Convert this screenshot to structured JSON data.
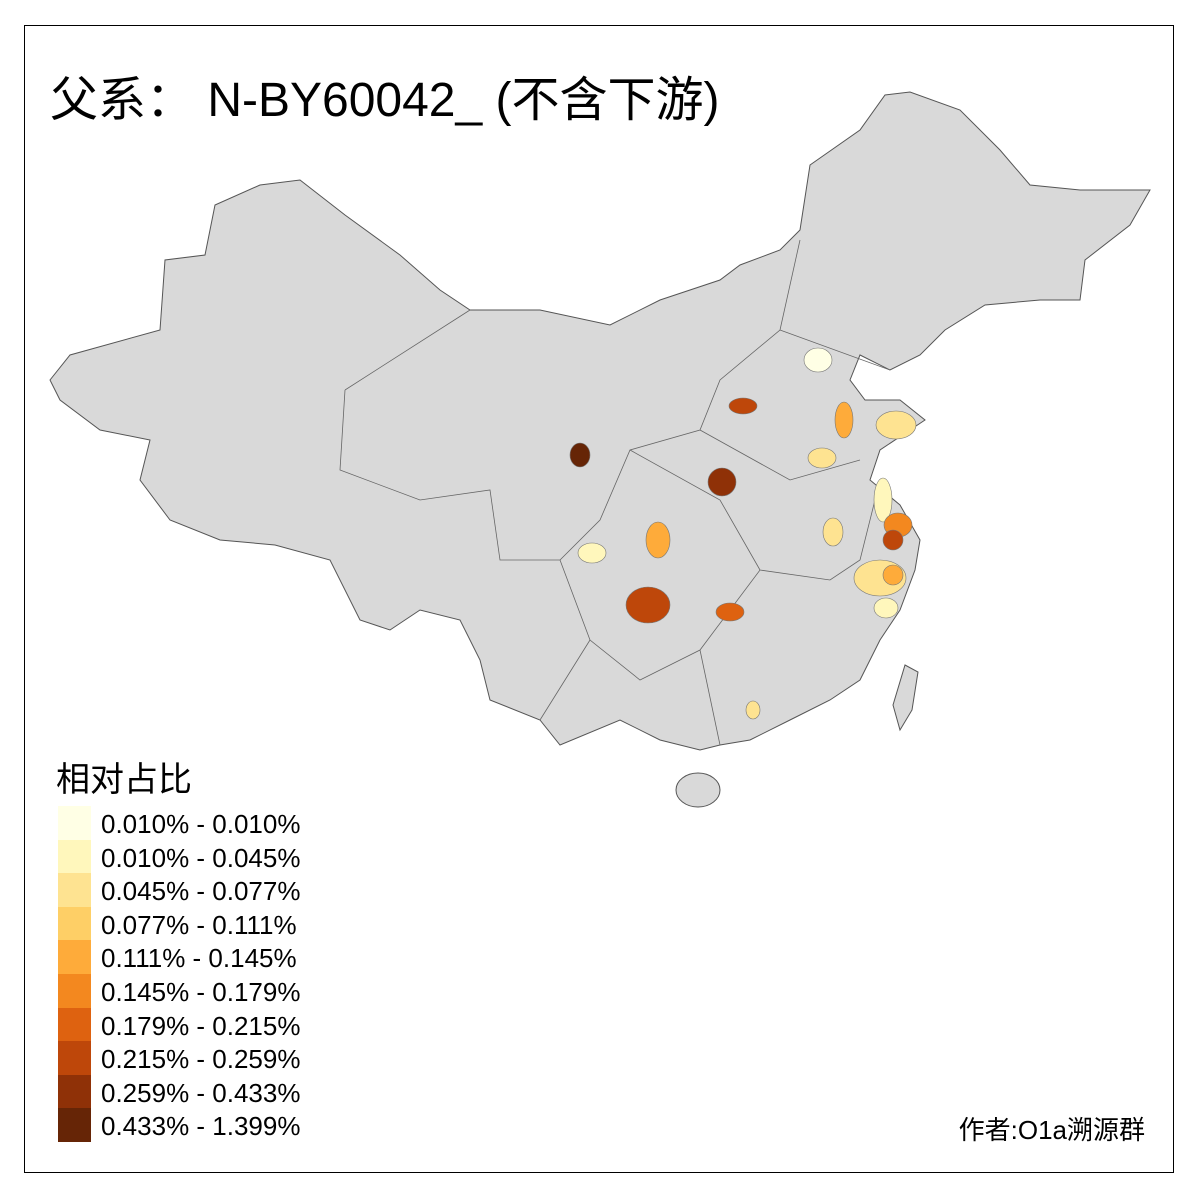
{
  "title": "父系： N-BY60042_ (不含下游)",
  "legend": {
    "title": "相对占比",
    "items": [
      {
        "label": "0.010% - 0.010%",
        "color": "#ffffe5"
      },
      {
        "label": "0.010% - 0.045%",
        "color": "#fff7bc"
      },
      {
        "label": "0.045% - 0.077%",
        "color": "#fee391"
      },
      {
        "label": "0.077% - 0.111%",
        "color": "#fecf66"
      },
      {
        "label": "0.111% - 0.145%",
        "color": "#feab3a"
      },
      {
        "label": "0.145% - 0.179%",
        "color": "#f3881f"
      },
      {
        "label": "0.179% - 0.215%",
        "color": "#de6210"
      },
      {
        "label": "0.215% - 0.259%",
        "color": "#be470a"
      },
      {
        "label": "0.259% - 0.433%",
        "color": "#8f3107"
      },
      {
        "label": "0.433% - 1.399%",
        "color": "#662506"
      }
    ]
  },
  "base_color": "#d9d9d9",
  "author": "作者:O1a溯源群"
}
